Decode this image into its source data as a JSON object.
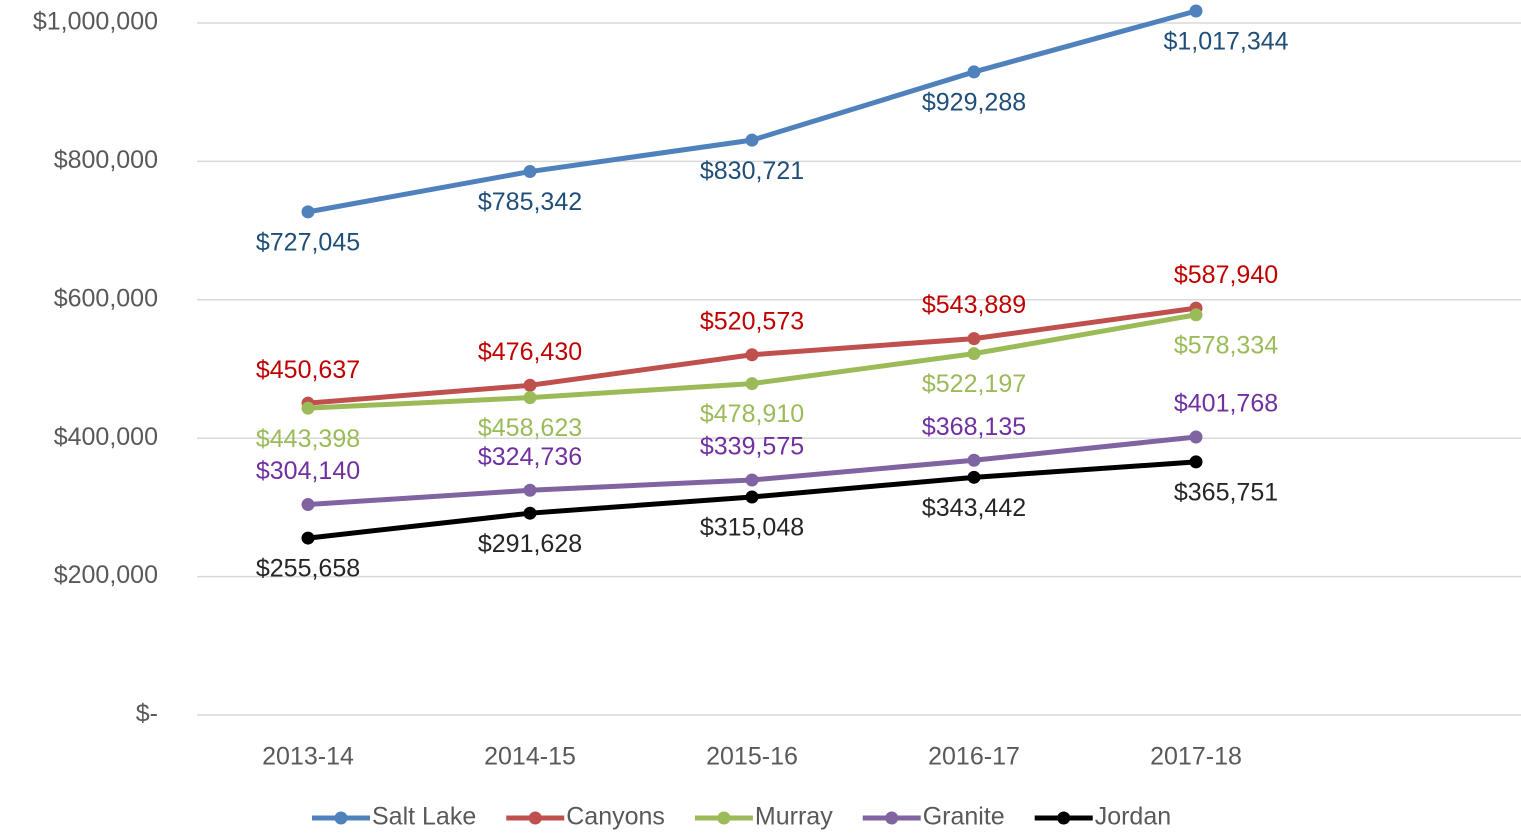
{
  "chart_data": {
    "type": "line",
    "categories": [
      "2013-14",
      "2014-15",
      "2015-16",
      "2016-17",
      "2017-18"
    ],
    "series": [
      {
        "name": "Salt Lake",
        "color": "#4f81bd",
        "label_color": "#1f4e79",
        "values": [
          727045,
          785342,
          830721,
          929288,
          1017344
        ],
        "value_labels": [
          "$727,045",
          "$785,342",
          "$830,721",
          "$929,288",
          "$1,017,344"
        ]
      },
      {
        "name": "Canyons",
        "color": "#c0504d",
        "label_color": "#c00000",
        "values": [
          450637,
          476430,
          520573,
          543889,
          587940
        ],
        "value_labels": [
          "$450,637",
          "$476,430",
          "$520,573",
          "$543,889",
          "$587,940"
        ]
      },
      {
        "name": "Murray",
        "color": "#9bbb59",
        "label_color": "#9bbb59",
        "values": [
          443398,
          458623,
          478910,
          522197,
          578334
        ],
        "value_labels": [
          "$443,398",
          "$458,623",
          "$478,910",
          "$522,197",
          "$578,334"
        ]
      },
      {
        "name": "Granite",
        "color": "#8064a2",
        "label_color": "#7030a0",
        "values": [
          304140,
          324736,
          339575,
          368135,
          401768
        ],
        "value_labels": [
          "$304,140",
          "$324,736",
          "$339,575",
          "$368,135",
          "$401,768"
        ]
      },
      {
        "name": "Jordan",
        "color": "#000000",
        "label_color": "#262626",
        "values": [
          255658,
          291628,
          315048,
          343442,
          365751
        ],
        "value_labels": [
          "$255,658",
          "$291,628",
          "$315,048",
          "$343,442",
          "$365,751"
        ]
      }
    ],
    "ylim": [
      0,
      1000000
    ],
    "yticks": [
      {
        "value": 0,
        "label": "$-"
      },
      {
        "value": 200000,
        "label": "$200,000"
      },
      {
        "value": 400000,
        "label": "$400,000"
      },
      {
        "value": 600000,
        "label": "$600,000"
      },
      {
        "value": 800000,
        "label": "$800,000"
      },
      {
        "value": 1000000,
        "label": "$1,000,000"
      }
    ],
    "grid": true,
    "legend": "bottom"
  }
}
